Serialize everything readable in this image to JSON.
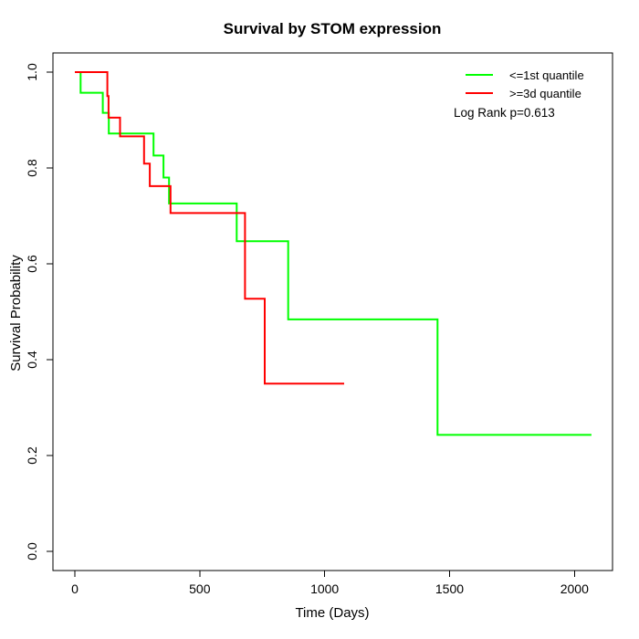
{
  "chart_data": {
    "type": "line",
    "subtype": "kaplan-meier-step",
    "title": "Survival by STOM expression",
    "xlabel": "Time (Days)",
    "ylabel": "Survival Probability",
    "xticks": [
      0,
      500,
      1000,
      1500,
      2000
    ],
    "ytick_labels": [
      "0.0",
      "0.2",
      "0.4",
      "0.6",
      "0.8",
      "1.0"
    ],
    "xlim": [
      0,
      2150
    ],
    "ylim": [
      0.0,
      1.0
    ],
    "grid": false,
    "legend_position": "topright",
    "annotation": "Log Rank p=0.613",
    "series": [
      {
        "name": "<=1st quantile",
        "key": "le-1st-quantile",
        "color": "#00ff00",
        "steps": [
          [
            0,
            1.0
          ],
          [
            23,
            0.957
          ],
          [
            112,
            0.915
          ],
          [
            136,
            0.872
          ],
          [
            315,
            0.826
          ],
          [
            355,
            0.78
          ],
          [
            377,
            0.726
          ],
          [
            648,
            0.647
          ],
          [
            854,
            0.484
          ],
          [
            1452,
            0.243
          ]
        ],
        "end_time": 2068
      },
      {
        "name": ">=3d quantile",
        "key": "ge-3d-quantile",
        "color": "#ff0000",
        "steps": [
          [
            0,
            1.0
          ],
          [
            130,
            0.95
          ],
          [
            135,
            0.905
          ],
          [
            181,
            0.866
          ],
          [
            277,
            0.809
          ],
          [
            300,
            0.762
          ],
          [
            383,
            0.706
          ],
          [
            681,
            0.527
          ],
          [
            760,
            0.35
          ]
        ],
        "end_time": 1078
      }
    ]
  }
}
